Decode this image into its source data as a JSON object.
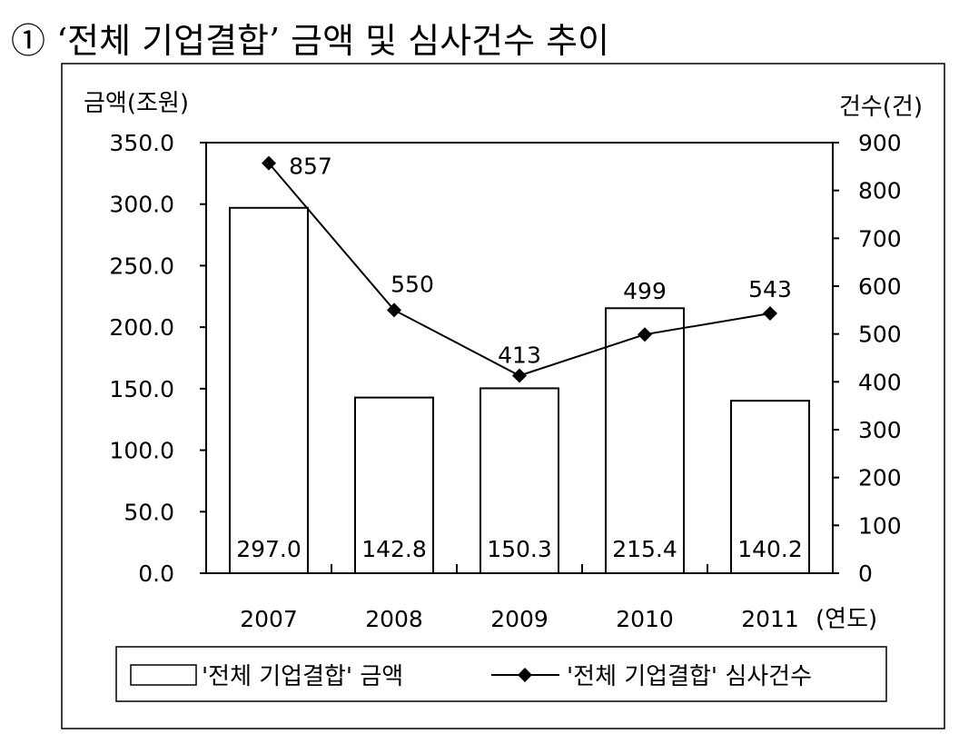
{
  "heading": "① ‘전체 기업결합’ 금액 및 심사건수 추이",
  "chart_data": {
    "type": "bar",
    "categories": [
      "2007",
      "2008",
      "2009",
      "2010",
      "2011"
    ],
    "x_unit": "(연도)",
    "y_left": {
      "label": "금액(조원)",
      "range": [
        0,
        350
      ],
      "ticks": [
        "0.0",
        "50.0",
        "100.0",
        "150.0",
        "200.0",
        "250.0",
        "300.0",
        "350.0"
      ]
    },
    "y_right": {
      "label": "건수(건)",
      "range": [
        0,
        900
      ],
      "ticks": [
        "0",
        "100",
        "200",
        "300",
        "400",
        "500",
        "600",
        "700",
        "800",
        "900"
      ]
    },
    "series": [
      {
        "name": "'전체 기업결합' 금액",
        "type": "bar",
        "axis": "left",
        "values": [
          297.0,
          142.8,
          150.3,
          215.4,
          140.2
        ],
        "labels": [
          "297.0",
          "142.8",
          "150.3",
          "215.4",
          "140.2"
        ]
      },
      {
        "name": "'전체 기업결합' 심사건수",
        "type": "line",
        "axis": "right",
        "values": [
          857,
          550,
          413,
          499,
          543
        ],
        "labels": [
          "857",
          "550",
          "413",
          "499",
          "543"
        ]
      }
    ],
    "grid": false,
    "legend": "bottom"
  }
}
